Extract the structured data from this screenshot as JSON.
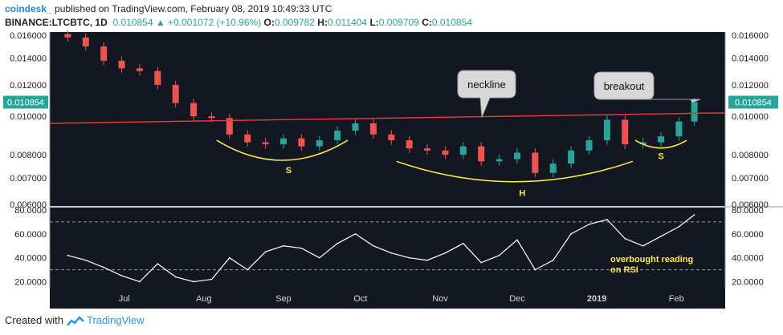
{
  "header": {
    "author": "coindesk_",
    "published": "published on TradingView.com, February 08, 2019 10:49:33 UTC",
    "symbol": "BINANCE:LTCBTC, 1D",
    "last": "0.010854",
    "change_arrow": "▲",
    "change": "+0.001072 (+10.96%)",
    "o_label": "O:",
    "o_value": "0.009782",
    "h_label": "H:",
    "h_value": "0.011404",
    "l_label": "L:",
    "l_value": "0.009709",
    "c_label": "C:",
    "c_value": "0.010854"
  },
  "footer": {
    "created_with": "Created with",
    "brand": "TradingView",
    "logo_icon": "tradingview-logo-icon"
  },
  "colors": {
    "background": "#131722",
    "up": "#26a69a",
    "down": "#ef5350",
    "neckline": "#e53935",
    "pattern": "#ffeb3b",
    "rsi": "#ffffff",
    "badge": "#26a69a"
  },
  "chart_data": [
    {
      "type": "candlestick",
      "x_ticks": [
        "Jul",
        "Aug",
        "Sep",
        "Oct",
        "Nov",
        "Dec",
        "2019",
        "Feb"
      ],
      "y_ticks": [
        "0.016000",
        "0.014000",
        "0.012000",
        "0.010000",
        "0.008000",
        "0.007000",
        "0.006000"
      ],
      "ylim": [
        0.006,
        0.016
      ],
      "scale": "log",
      "last_price_label": "0.010854",
      "series": [
        {
          "x": [
            "2018-06-09",
            "2018-06-16",
            "2018-06-23",
            "2018-06-30",
            "2018-07-07",
            "2018-07-14",
            "2018-07-21",
            "2018-07-28",
            "2018-08-04",
            "2018-08-11",
            "2018-08-18",
            "2018-08-25",
            "2018-09-01",
            "2018-09-08",
            "2018-09-15",
            "2018-09-22",
            "2018-09-29",
            "2018-10-06",
            "2018-10-13",
            "2018-10-20",
            "2018-10-27",
            "2018-11-03",
            "2018-11-10",
            "2018-11-17",
            "2018-11-24",
            "2018-12-01",
            "2018-12-08",
            "2018-12-15",
            "2018-12-22",
            "2018-12-29",
            "2019-01-05",
            "2019-01-12",
            "2019-01-19",
            "2019-01-26",
            "2019-02-02",
            "2019-02-08"
          ],
          "close": [
            0.0158,
            0.015,
            0.0138,
            0.0132,
            0.013,
            0.012,
            0.0108,
            0.01,
            0.0099,
            0.009,
            0.0086,
            0.0085,
            0.0088,
            0.0084,
            0.0087,
            0.0092,
            0.0096,
            0.009,
            0.0087,
            0.0083,
            0.0082,
            0.008,
            0.0084,
            0.0077,
            0.0078,
            0.0081,
            0.0072,
            0.0076,
            0.0082,
            0.0087,
            0.0098,
            0.0085,
            0.0086,
            0.0089,
            0.0097,
            0.010854
          ]
        }
      ],
      "annotations": [
        {
          "text": "neckline"
        },
        {
          "text": "breakout"
        },
        {
          "text": "S"
        },
        {
          "text": "H"
        },
        {
          "text": "S"
        }
      ]
    },
    {
      "type": "line",
      "name": "RSI",
      "x_ticks": [
        "Jul",
        "Aug",
        "Sep",
        "Oct",
        "Nov",
        "Dec",
        "2019",
        "Feb"
      ],
      "y_ticks": [
        "80.0000",
        "60.0000",
        "40.0000",
        "20.0000"
      ],
      "ylim": [
        15,
        82
      ],
      "levels": [
        70,
        30
      ],
      "annotation": "overbought reading on RSI",
      "annotation_lines": [
        "overbought reading",
        "on RSI"
      ],
      "series": [
        {
          "x": [
            "2018-06-09",
            "2018-06-16",
            "2018-06-23",
            "2018-06-30",
            "2018-07-07",
            "2018-07-14",
            "2018-07-21",
            "2018-07-28",
            "2018-08-04",
            "2018-08-11",
            "2018-08-18",
            "2018-08-25",
            "2018-09-01",
            "2018-09-08",
            "2018-09-15",
            "2018-09-22",
            "2018-09-29",
            "2018-10-06",
            "2018-10-13",
            "2018-10-20",
            "2018-10-27",
            "2018-11-03",
            "2018-11-10",
            "2018-11-17",
            "2018-11-24",
            "2018-12-01",
            "2018-12-08",
            "2018-12-15",
            "2018-12-22",
            "2018-12-29",
            "2019-01-05",
            "2019-01-12",
            "2019-01-19",
            "2019-01-26",
            "2019-02-02",
            "2019-02-08"
          ],
          "values": [
            42,
            38,
            32,
            25,
            20,
            35,
            24,
            20,
            22,
            40,
            30,
            45,
            50,
            48,
            40,
            52,
            60,
            50,
            44,
            40,
            38,
            44,
            52,
            36,
            42,
            55,
            30,
            38,
            60,
            68,
            72,
            56,
            50,
            58,
            66,
            76
          ]
        }
      ]
    }
  ]
}
